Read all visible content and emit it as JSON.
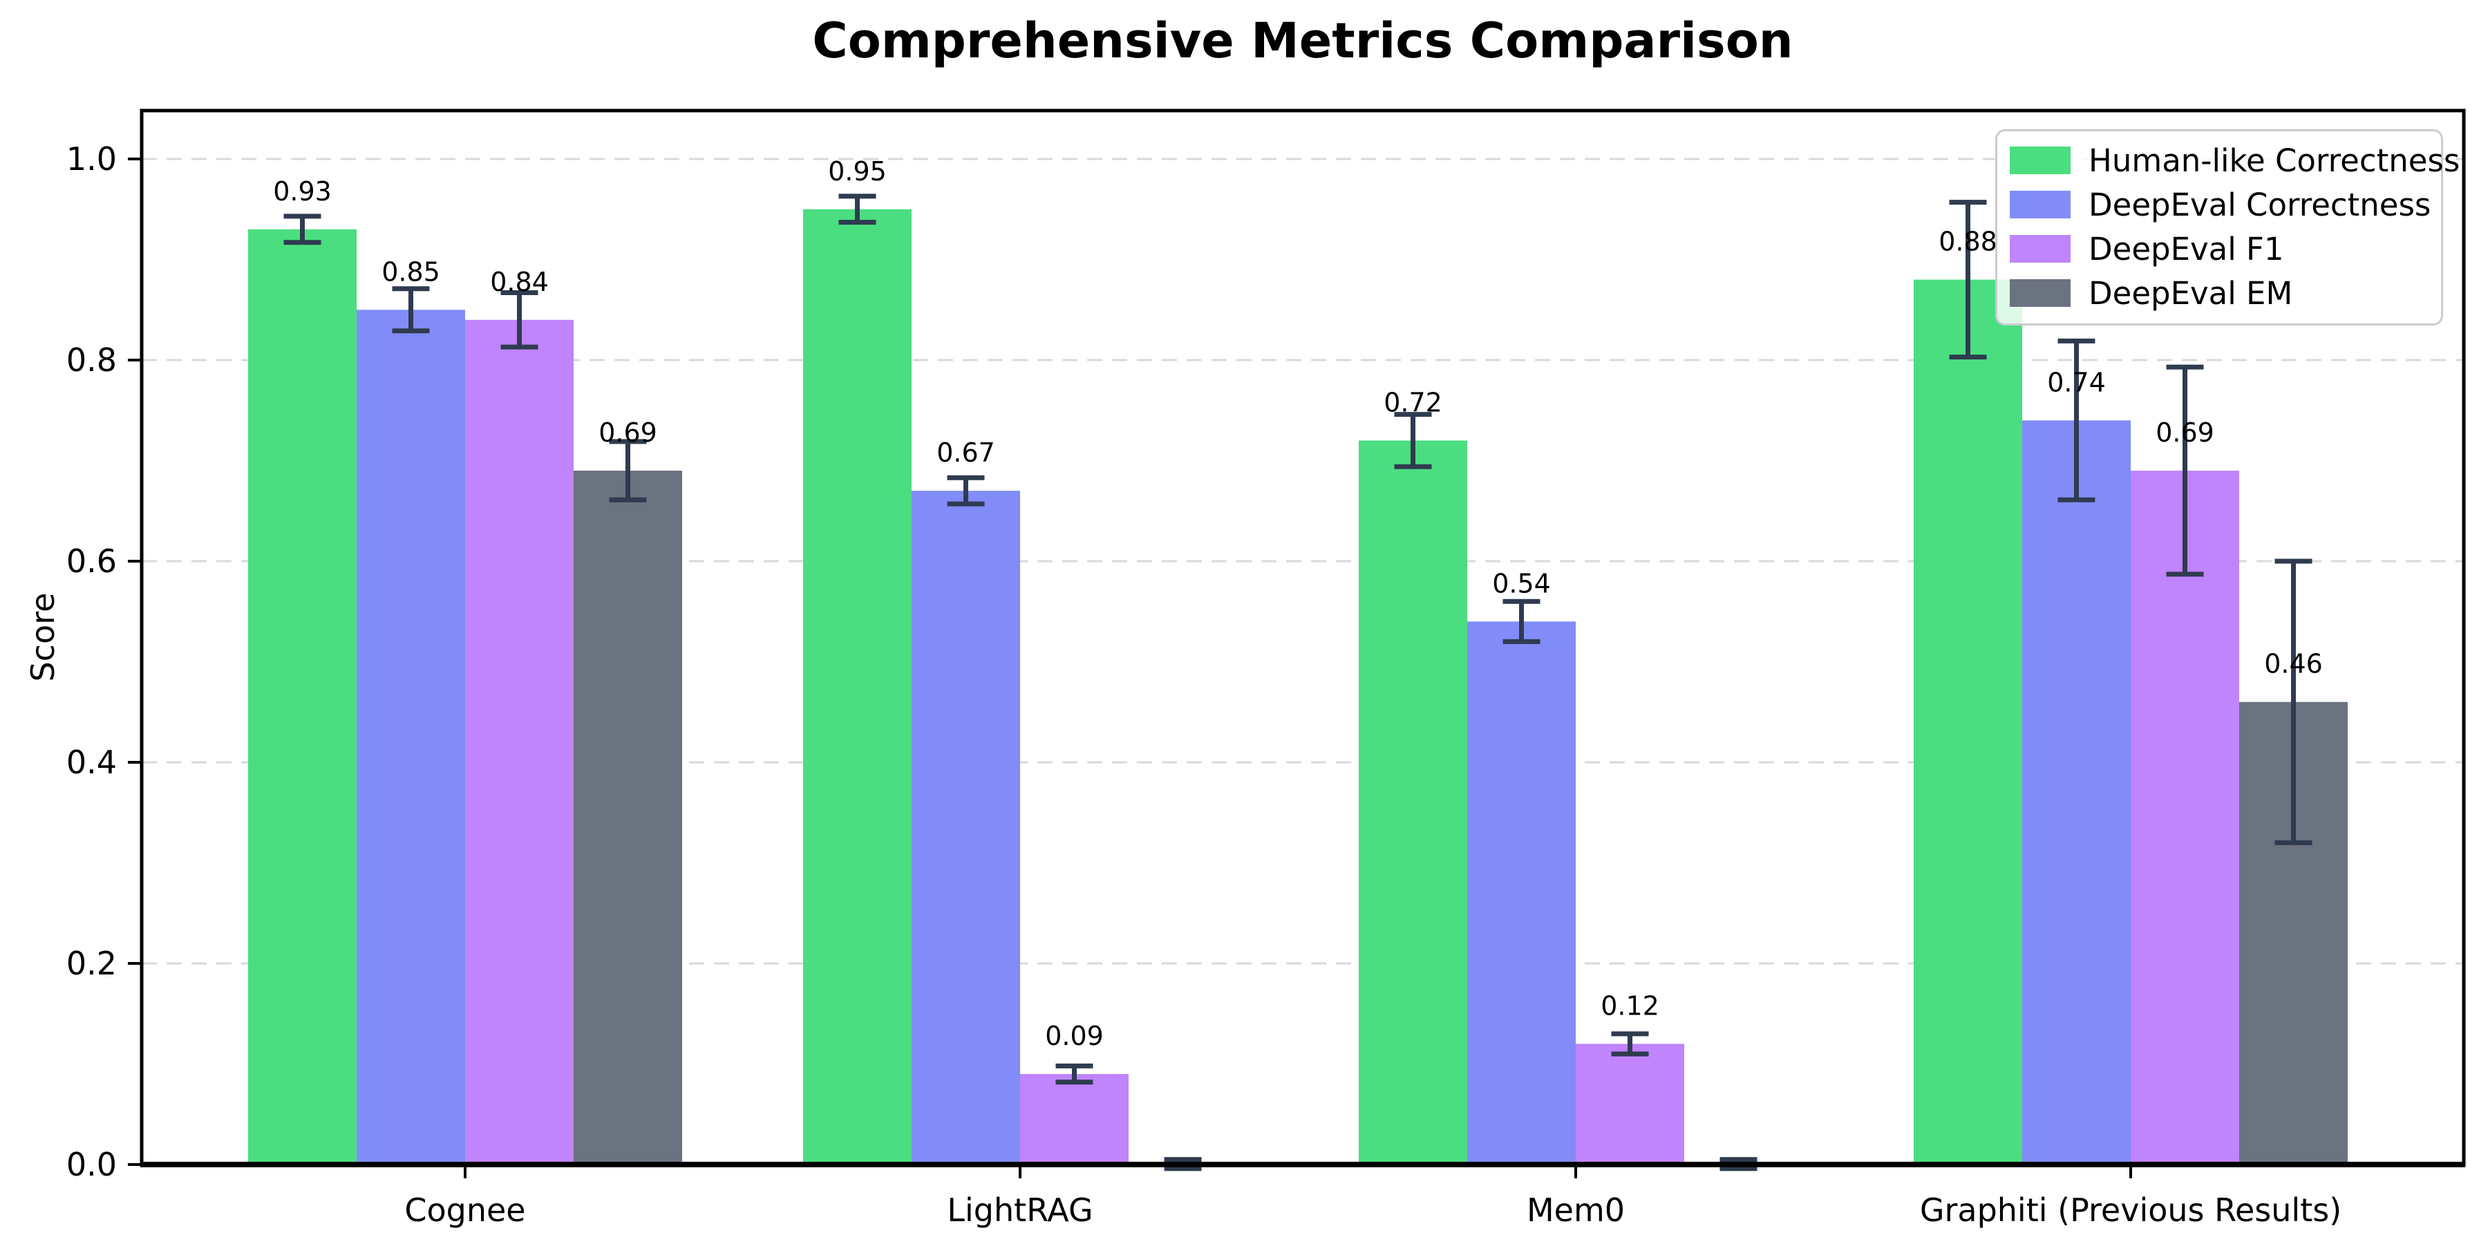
{
  "chart_data": {
    "type": "bar",
    "title": "Comprehensive Metrics Comparison",
    "xlabel": "",
    "ylabel": "Score",
    "categories": [
      "Cognee",
      "LightRAG",
      "Mem0",
      "Graphiti (Previous Results)"
    ],
    "series": [
      {
        "name": "Human-like Correctness",
        "color": "#4ade80",
        "values": [
          0.93,
          0.95,
          0.72,
          0.88
        ],
        "errors": [
          0.013,
          0.013,
          0.026,
          0.077
        ],
        "labels": [
          "0.93",
          "0.95",
          "0.72",
          "0.88"
        ]
      },
      {
        "name": "DeepEval Correctness",
        "color": "#818cf8",
        "values": [
          0.85,
          0.67,
          0.54,
          0.74
        ],
        "errors": [
          0.021,
          0.013,
          0.02,
          0.079
        ],
        "labels": [
          "0.85",
          "0.67",
          "0.54",
          "0.74"
        ]
      },
      {
        "name": "DeepEval F1",
        "color": "#c084fc",
        "values": [
          0.84,
          0.09,
          0.12,
          0.69
        ],
        "errors": [
          0.027,
          0.008,
          0.01,
          0.103
        ],
        "labels": [
          "0.84",
          "0.09",
          "0.12",
          "0.69"
        ]
      },
      {
        "name": "DeepEval EM",
        "color": "#6b7280",
        "values": [
          0.69,
          0.0,
          0.0,
          0.46
        ],
        "errors": [
          0.029,
          0.005,
          0.005,
          0.14
        ],
        "labels": [
          "0.69",
          null,
          null,
          "0.46"
        ]
      }
    ],
    "yticks": [
      "0.0",
      "0.2",
      "0.4",
      "0.6",
      "0.8",
      "1.0"
    ],
    "ylim": [
      0,
      1.048
    ],
    "grid": "horizontal-dashed",
    "legend_position": "upper-right",
    "error_bar_color": "#2f3b4f",
    "grid_color": "#d9d9d9",
    "axis_color": "#000000",
    "bar_label_color": "#000000"
  }
}
